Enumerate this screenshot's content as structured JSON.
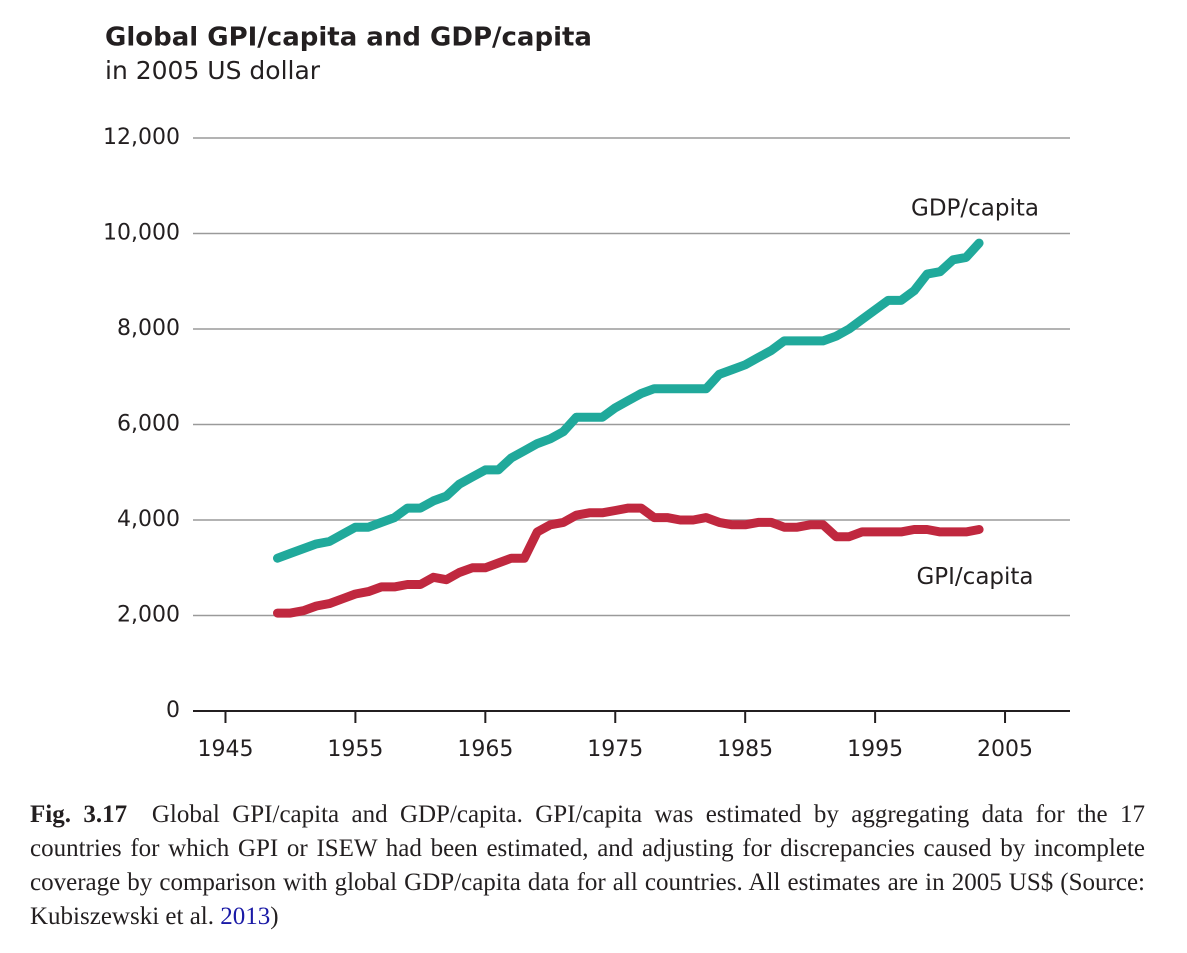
{
  "chart_data": {
    "type": "line",
    "title": "Global GPI/capita and GDP/capita",
    "subtitle": "in 2005 US dollar",
    "x": [
      1949,
      1950,
      1951,
      1952,
      1953,
      1954,
      1955,
      1956,
      1957,
      1958,
      1959,
      1960,
      1961,
      1962,
      1963,
      1964,
      1965,
      1966,
      1967,
      1968,
      1969,
      1970,
      1971,
      1972,
      1973,
      1974,
      1975,
      1976,
      1977,
      1978,
      1979,
      1980,
      1981,
      1982,
      1983,
      1984,
      1985,
      1986,
      1987,
      1988,
      1989,
      1990,
      1991,
      1992,
      1993,
      1994,
      1995,
      1996,
      1997,
      1998,
      1999,
      2000,
      2001,
      2002,
      2003
    ],
    "series": [
      {
        "name": "GDP/capita",
        "color": "#20a99b",
        "values": [
          3200,
          3300,
          3400,
          3500,
          3550,
          3700,
          3850,
          3850,
          3950,
          4050,
          4250,
          4250,
          4400,
          4500,
          4750,
          4900,
          5050,
          5050,
          5300,
          5450,
          5600,
          5700,
          5850,
          6150,
          6150,
          6150,
          6350,
          6500,
          6650,
          6750,
          6750,
          6750,
          6750,
          6750,
          7050,
          7150,
          7250,
          7400,
          7550,
          7750,
          7750,
          7750,
          7750,
          7850,
          8000,
          8200,
          8400,
          8600,
          8600,
          8800,
          9150,
          9200,
          9450,
          9500,
          9800
        ]
      },
      {
        "name": "GPI/capita",
        "color": "#c0283f",
        "values": [
          2050,
          2050,
          2100,
          2200,
          2250,
          2350,
          2450,
          2500,
          2600,
          2600,
          2650,
          2650,
          2800,
          2750,
          2900,
          3000,
          3000,
          3100,
          3200,
          3200,
          3750,
          3900,
          3950,
          4100,
          4150,
          4150,
          4200,
          4250,
          4250,
          4050,
          4050,
          4000,
          4000,
          4050,
          3950,
          3900,
          3900,
          3950,
          3950,
          3850,
          3850,
          3900,
          3900,
          3650,
          3650,
          3750,
          3750,
          3750,
          3750,
          3800,
          3800,
          3750,
          3750,
          3750,
          3800
        ]
      }
    ],
    "xlim": [
      1942.5,
      2010
    ],
    "xticks": [
      1945,
      1955,
      1965,
      1975,
      1985,
      1995,
      2005
    ],
    "ylim": [
      0,
      12000
    ],
    "yticks": [
      0,
      {
        "value": 2000,
        "label": "2,000"
      },
      {
        "value": 4000,
        "label": "4,000"
      },
      {
        "value": 6000,
        "label": "6,000"
      },
      {
        "value": 8000,
        "label": "8,000"
      },
      {
        "value": 10000,
        "label": "10,000"
      },
      {
        "value": 12000,
        "label": "12,000"
      }
    ],
    "grid": true,
    "legend": "inline"
  },
  "caption": {
    "label": "Fig. 3.17",
    "text": "Global GPI/capita and GDP/capita. GPI/capita was estimated by aggregating data for the 17 countries for which GPI or ISEW had been estimated, and adjusting for discrepancies caused by incomplete coverage by comparison with global GDP/capita data for all countries. All estimates are in 2005 US$ (Source: Kubiszewski et al. ",
    "citation": "2013",
    "closing": ")"
  }
}
